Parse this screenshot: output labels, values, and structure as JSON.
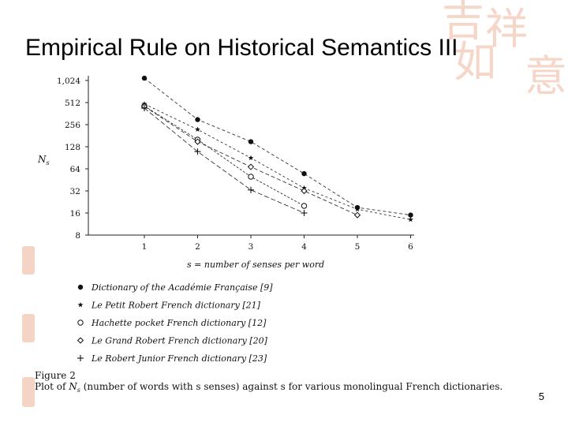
{
  "slide": {
    "title": "Empirical Rule on Historical Semantics III",
    "page_number": "5"
  },
  "decorations": {
    "glyphs": [
      "吉",
      "祥",
      "如",
      "意"
    ],
    "color": "#f4d5c5"
  },
  "chart_data": {
    "type": "line",
    "title": "",
    "xlabel": "s = number of senses per word",
    "ylabel": "N_s",
    "x": [
      1,
      2,
      3,
      4,
      5,
      6
    ],
    "x_ticks": [
      "1",
      "2",
      "3",
      "4",
      "5",
      "6"
    ],
    "y_scale": "log2",
    "y_ticks": [
      "8",
      "16",
      "32",
      "64",
      "128",
      "256",
      "512",
      "1,024"
    ],
    "y_tick_values": [
      8,
      16,
      32,
      64,
      128,
      256,
      512,
      1024
    ],
    "ylim": [
      8,
      1024
    ],
    "xlim": [
      1,
      6
    ],
    "grid": false,
    "legend_position": "below",
    "series": [
      {
        "name": "Dictionary of the Académie Française [9]",
        "marker": "filled-circle",
        "values": [
          1100,
          300,
          150,
          55,
          19,
          15
        ]
      },
      {
        "name": "Le Petit Robert French dictionary [21]",
        "marker": "star",
        "values": [
          490,
          220,
          90,
          35,
          18,
          13
        ]
      },
      {
        "name": "Hachette pocket French dictionary [12]",
        "marker": "open-circle",
        "values": [
          460,
          160,
          50,
          20,
          null,
          null
        ]
      },
      {
        "name": "Le Grand Robert French dictionary [20]",
        "marker": "diamond",
        "values": [
          455,
          150,
          68,
          32,
          15,
          null
        ]
      },
      {
        "name": "Le Robert Junior French dictionary [23]",
        "marker": "plus",
        "values": [
          430,
          110,
          33,
          16,
          null,
          null
        ]
      }
    ],
    "caption_label": "Figure 2",
    "caption_text_pre": "Plot of ",
    "caption_symbol": "N",
    "caption_subscript": "s",
    "caption_text_post": " (number of words with s senses) against s for various monolingual French dictionaries."
  }
}
